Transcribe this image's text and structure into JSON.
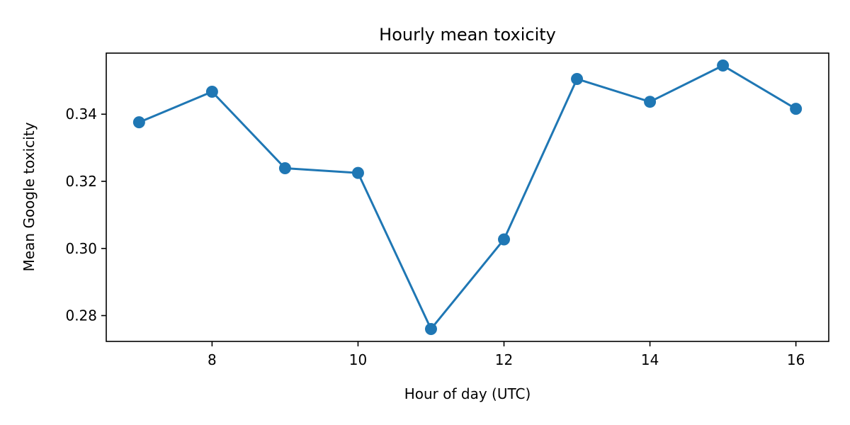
{
  "chart_data": {
    "type": "line",
    "title": "Hourly mean toxicity",
    "xlabel": "Hour of day (UTC)",
    "ylabel": "Mean Google toxicity",
    "x": [
      7,
      8,
      9,
      10,
      11,
      12,
      13,
      14,
      15,
      16
    ],
    "series": [
      {
        "values": [
          0.3376,
          0.3467,
          0.3239,
          0.3225,
          0.276,
          0.3027,
          0.3505,
          0.3437,
          0.3545,
          0.3416
        ],
        "color": "#1f77b4",
        "marker": "circle"
      }
    ],
    "xlim": [
      6.55,
      16.45
    ],
    "ylim": [
      0.2723,
      0.3582
    ],
    "xticks": [
      8,
      10,
      12,
      14,
      16
    ],
    "xtick_labels": [
      "8",
      "10",
      "12",
      "14",
      "16"
    ],
    "yticks": [
      0.28,
      0.3,
      0.32,
      0.34
    ],
    "ytick_labels": [
      "0.28",
      "0.30",
      "0.32",
      "0.34"
    ],
    "grid": false,
    "legend": "none"
  }
}
